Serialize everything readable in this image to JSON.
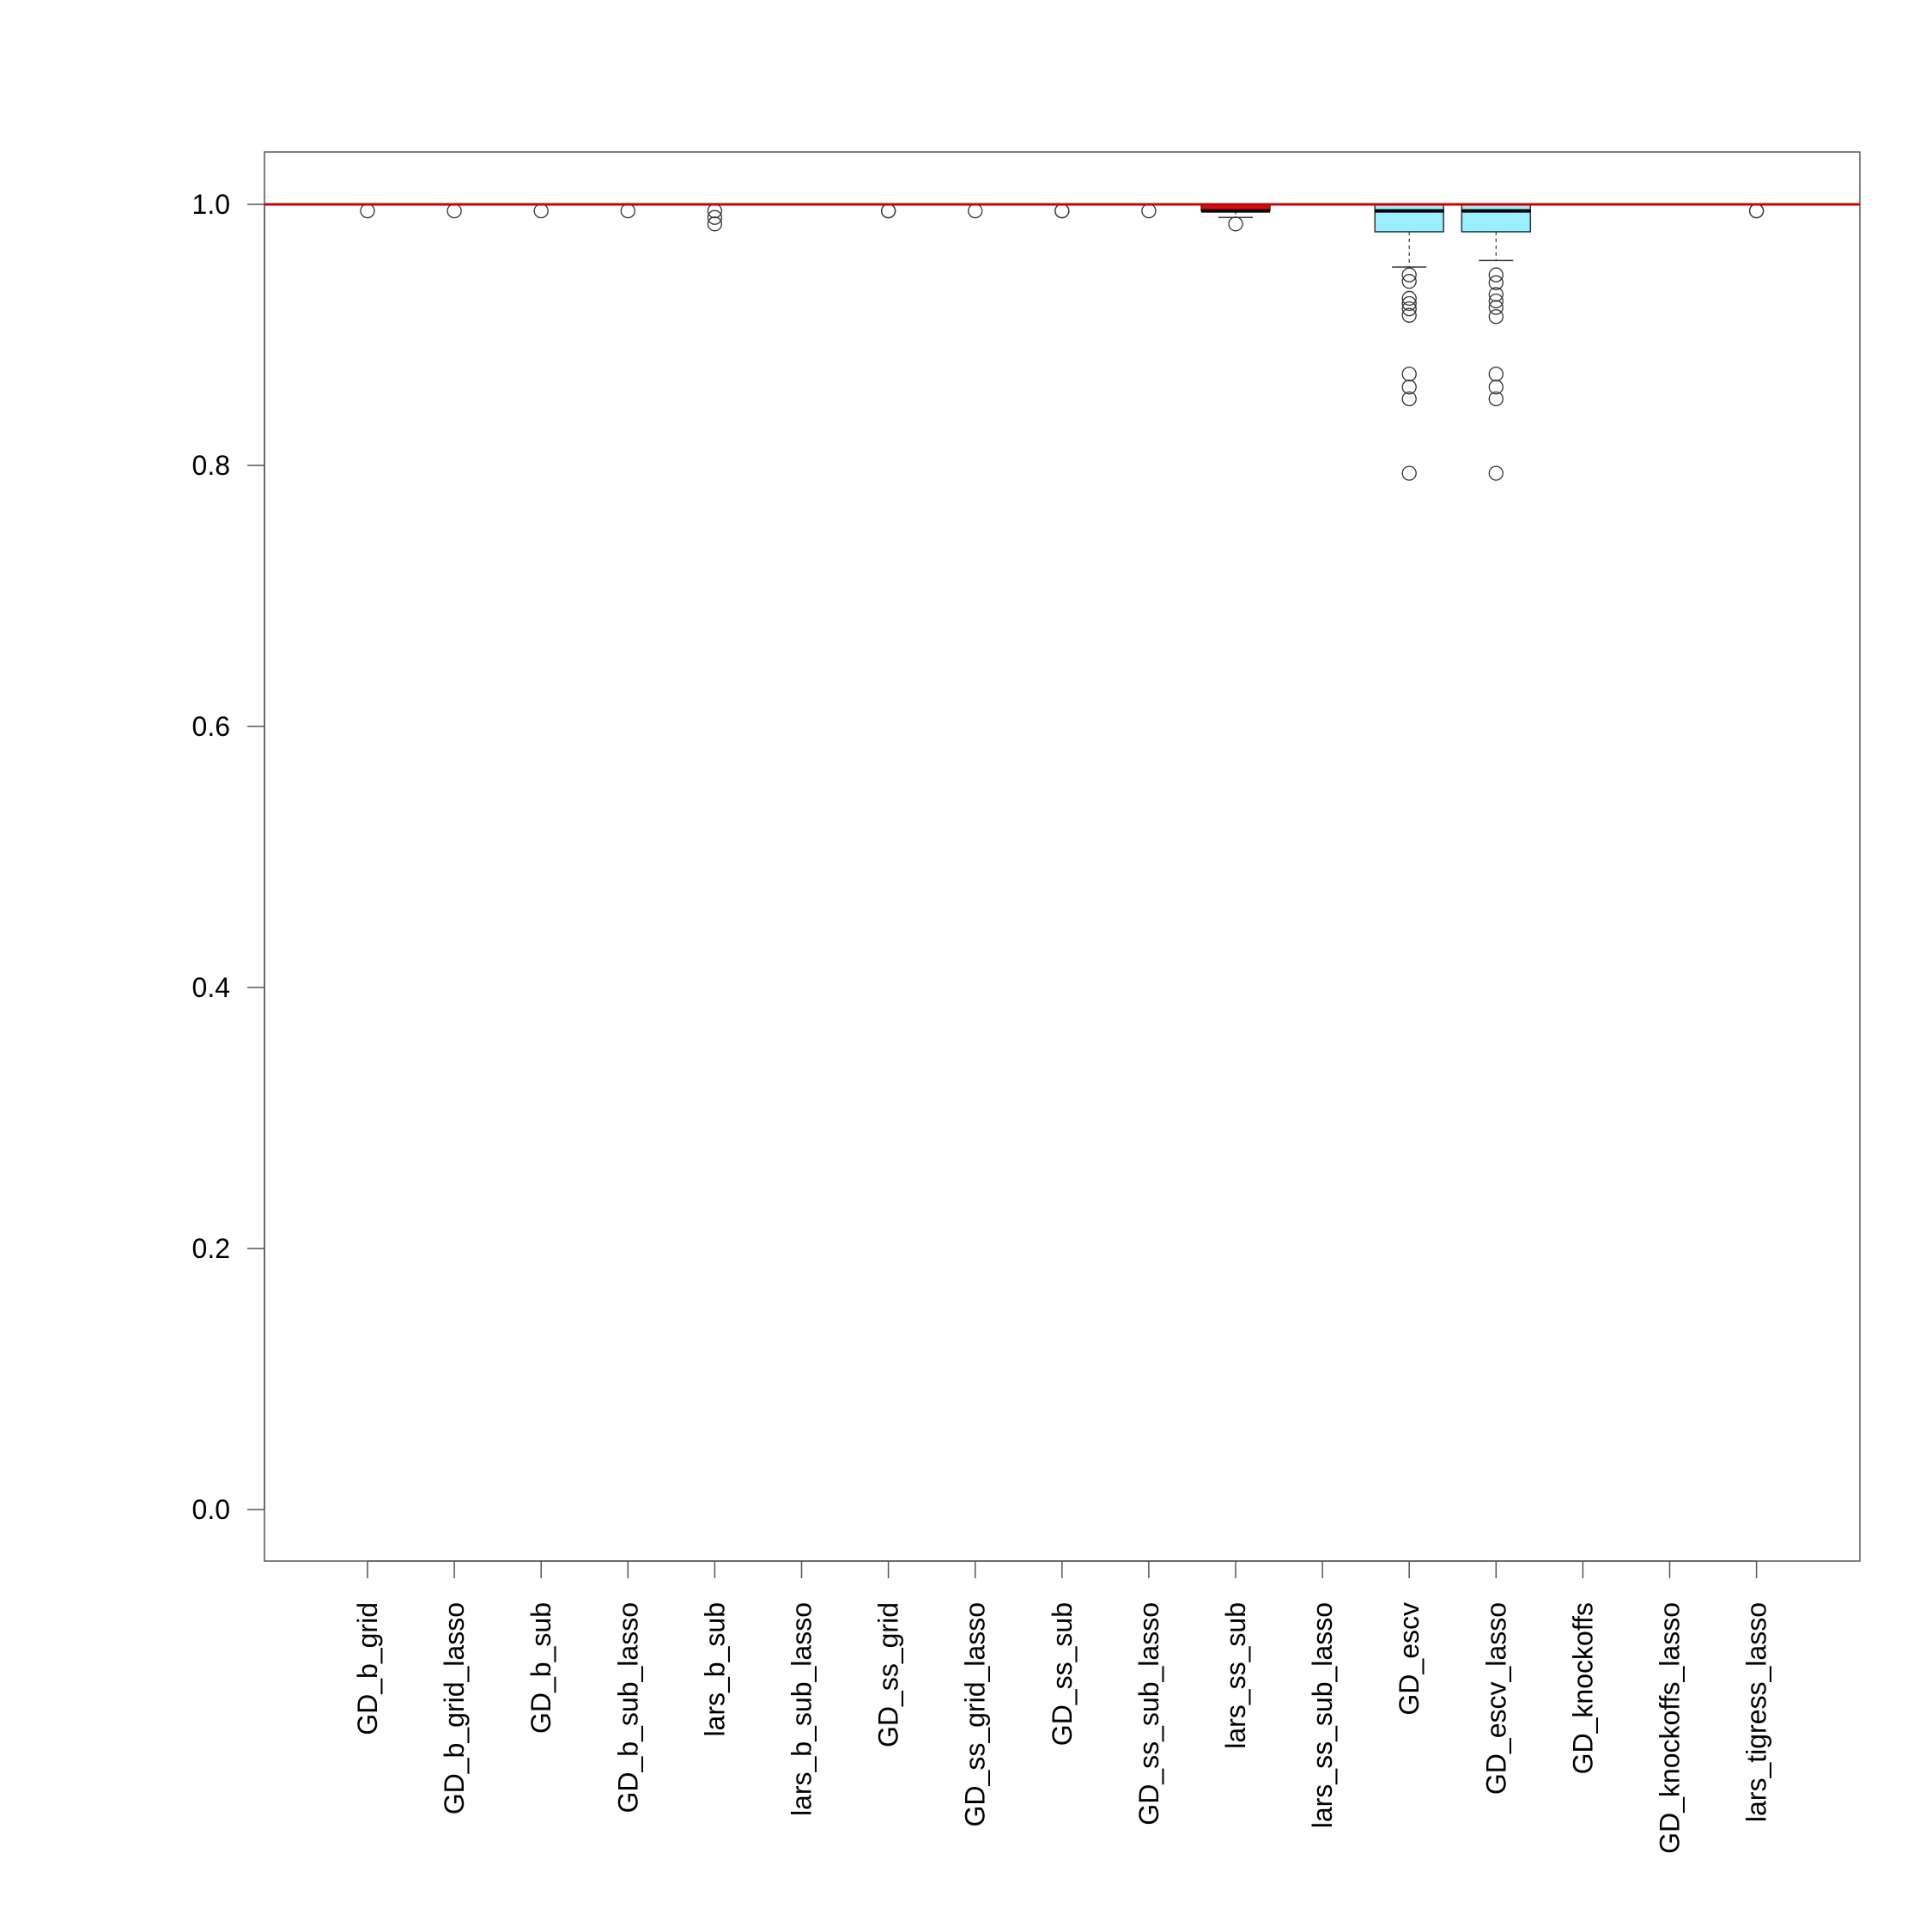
{
  "chart_data": {
    "type": "boxplot",
    "categories": [
      "GD_b_grid",
      "GD_b_grid_lasso",
      "GD_b_sub",
      "GD_b_sub_lasso",
      "lars_b_sub",
      "lars_b_sub_lasso",
      "GD_ss_grid",
      "GD_ss_grid_lasso",
      "GD_ss_sub",
      "GD_ss_sub_lasso",
      "lars_ss_sub",
      "lars_ss_sub_lasso",
      "GD_escv",
      "GD_escv_lasso",
      "GD_knockoffs",
      "GD_knockoffs_lasso",
      "lars_tigress_lasso"
    ],
    "ylim": [
      -0.04,
      1.04
    ],
    "yticks": [
      "0.0",
      "0.2",
      "0.4",
      "0.6",
      "0.8",
      "1.0"
    ],
    "reference_line": {
      "y": 1.0,
      "color": "#cc0000"
    },
    "boxes": [
      {
        "q1": 1.0,
        "median": 1.0,
        "q3": 1.0,
        "whisker_low": 1.0,
        "whisker_high": 1.0,
        "fill": "#ffffff",
        "outliers": [
          0.995
        ]
      },
      {
        "q1": 1.0,
        "median": 1.0,
        "q3": 1.0,
        "whisker_low": 1.0,
        "whisker_high": 1.0,
        "fill": "#ffffff",
        "outliers": [
          0.995
        ]
      },
      {
        "q1": 1.0,
        "median": 1.0,
        "q3": 1.0,
        "whisker_low": 1.0,
        "whisker_high": 1.0,
        "fill": "#ffffff",
        "outliers": [
          0.995
        ]
      },
      {
        "q1": 1.0,
        "median": 1.0,
        "q3": 1.0,
        "whisker_low": 1.0,
        "whisker_high": 1.0,
        "fill": "#ffffff",
        "outliers": [
          0.995
        ]
      },
      {
        "q1": 1.0,
        "median": 1.0,
        "q3": 1.0,
        "whisker_low": 1.0,
        "whisker_high": 1.0,
        "fill": "#ffffff",
        "outliers": [
          0.995,
          0.99,
          0.985
        ]
      },
      {
        "q1": 1.0,
        "median": 1.0,
        "q3": 1.0,
        "whisker_low": 1.0,
        "whisker_high": 1.0,
        "fill": "#ffffff",
        "outliers": []
      },
      {
        "q1": 1.0,
        "median": 1.0,
        "q3": 1.0,
        "whisker_low": 1.0,
        "whisker_high": 1.0,
        "fill": "#ffffff",
        "outliers": [
          0.995,
          0.995
        ]
      },
      {
        "q1": 1.0,
        "median": 1.0,
        "q3": 1.0,
        "whisker_low": 1.0,
        "whisker_high": 1.0,
        "fill": "#ffffff",
        "outliers": [
          0.995
        ]
      },
      {
        "q1": 1.0,
        "median": 1.0,
        "q3": 1.0,
        "whisker_low": 1.0,
        "whisker_high": 1.0,
        "fill": "#ffffff",
        "outliers": [
          0.995,
          0.995
        ]
      },
      {
        "q1": 1.0,
        "median": 1.0,
        "q3": 1.0,
        "whisker_low": 1.0,
        "whisker_high": 1.0,
        "fill": "#ffffff",
        "outliers": [
          0.995
        ]
      },
      {
        "q1": 0.995,
        "median": 0.995,
        "q3": 1.0,
        "whisker_low": 0.99,
        "whisker_high": 1.0,
        "fill": "#cc1111",
        "outliers": [
          0.985
        ]
      },
      {
        "q1": 1.0,
        "median": 1.0,
        "q3": 1.0,
        "whisker_low": 1.0,
        "whisker_high": 1.0,
        "fill": "#ffffff",
        "outliers": []
      },
      {
        "q1": 0.979,
        "median": 0.995,
        "q3": 1.0,
        "whisker_low": 0.952,
        "whisker_high": 1.0,
        "fill": "#99eeff",
        "outliers": [
          0.946,
          0.941,
          0.928,
          0.924,
          0.92,
          0.915,
          0.87,
          0.86,
          0.851,
          0.794
        ]
      },
      {
        "q1": 0.979,
        "median": 0.995,
        "q3": 1.0,
        "whisker_low": 0.957,
        "whisker_high": 1.0,
        "fill": "#99eeff",
        "outliers": [
          0.946,
          0.94,
          0.931,
          0.926,
          0.921,
          0.914,
          0.87,
          0.86,
          0.851,
          0.794
        ]
      },
      {
        "q1": 1.0,
        "median": 1.0,
        "q3": 1.0,
        "whisker_low": 1.0,
        "whisker_high": 1.0,
        "fill": "#ffffff",
        "outliers": []
      },
      {
        "q1": 1.0,
        "median": 1.0,
        "q3": 1.0,
        "whisker_low": 1.0,
        "whisker_high": 1.0,
        "fill": "#ffffff",
        "outliers": []
      },
      {
        "q1": 1.0,
        "median": 1.0,
        "q3": 1.0,
        "whisker_low": 1.0,
        "whisker_high": 1.0,
        "fill": "#ffffff",
        "outliers": [
          0.995,
          0.995
        ]
      }
    ],
    "grid": false,
    "legend": "none",
    "title": "",
    "xlabel": "",
    "ylabel": ""
  }
}
